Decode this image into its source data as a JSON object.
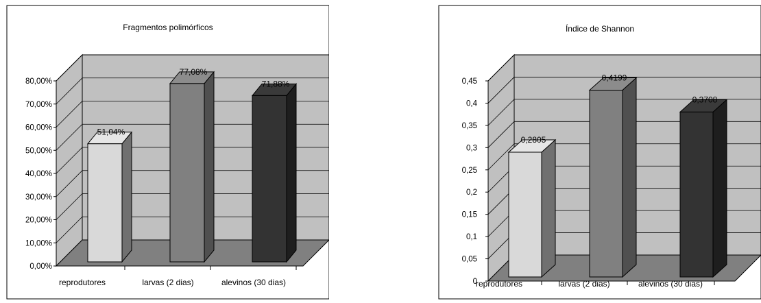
{
  "chart_data": [
    {
      "type": "bar",
      "title": "Fragmentos polimórficos",
      "categories": [
        "reprodutores",
        "larvas (2 dias)",
        "alevinos (30 dias)"
      ],
      "values": [
        51.04,
        77.08,
        71.88
      ],
      "data_labels": [
        "51,04%",
        "77,08%",
        "71,88%"
      ],
      "ylim": [
        0,
        80
      ],
      "yticks": [
        "0,00%",
        "10,00%",
        "20,00%",
        "30,00%",
        "40,00%",
        "50,00%",
        "60,00%",
        "70,00%",
        "80,00%"
      ],
      "grid": true,
      "colors": {
        "bars": [
          "#d9d9d9",
          "#808080",
          "#333333"
        ],
        "walls": "#c0c0c0",
        "floor": "#808080"
      }
    },
    {
      "type": "bar",
      "title": "Índice de Shannon",
      "categories": [
        "reprodutores",
        "larvas (2 dias)",
        "alevinos (30 dias)"
      ],
      "values": [
        0.2805,
        0.4199,
        0.3708
      ],
      "data_labels": [
        "0,2805",
        "0,4199",
        "0,3708"
      ],
      "ylim": [
        0,
        0.45
      ],
      "yticks": [
        "0",
        "0,05",
        "0,1",
        "0,15",
        "0,2",
        "0,25",
        "0,3",
        "0,35",
        "0,4",
        "0,45"
      ],
      "grid": true,
      "colors": {
        "bars": [
          "#d9d9d9",
          "#808080",
          "#333333"
        ],
        "walls": "#c0c0c0",
        "floor": "#808080"
      }
    }
  ]
}
